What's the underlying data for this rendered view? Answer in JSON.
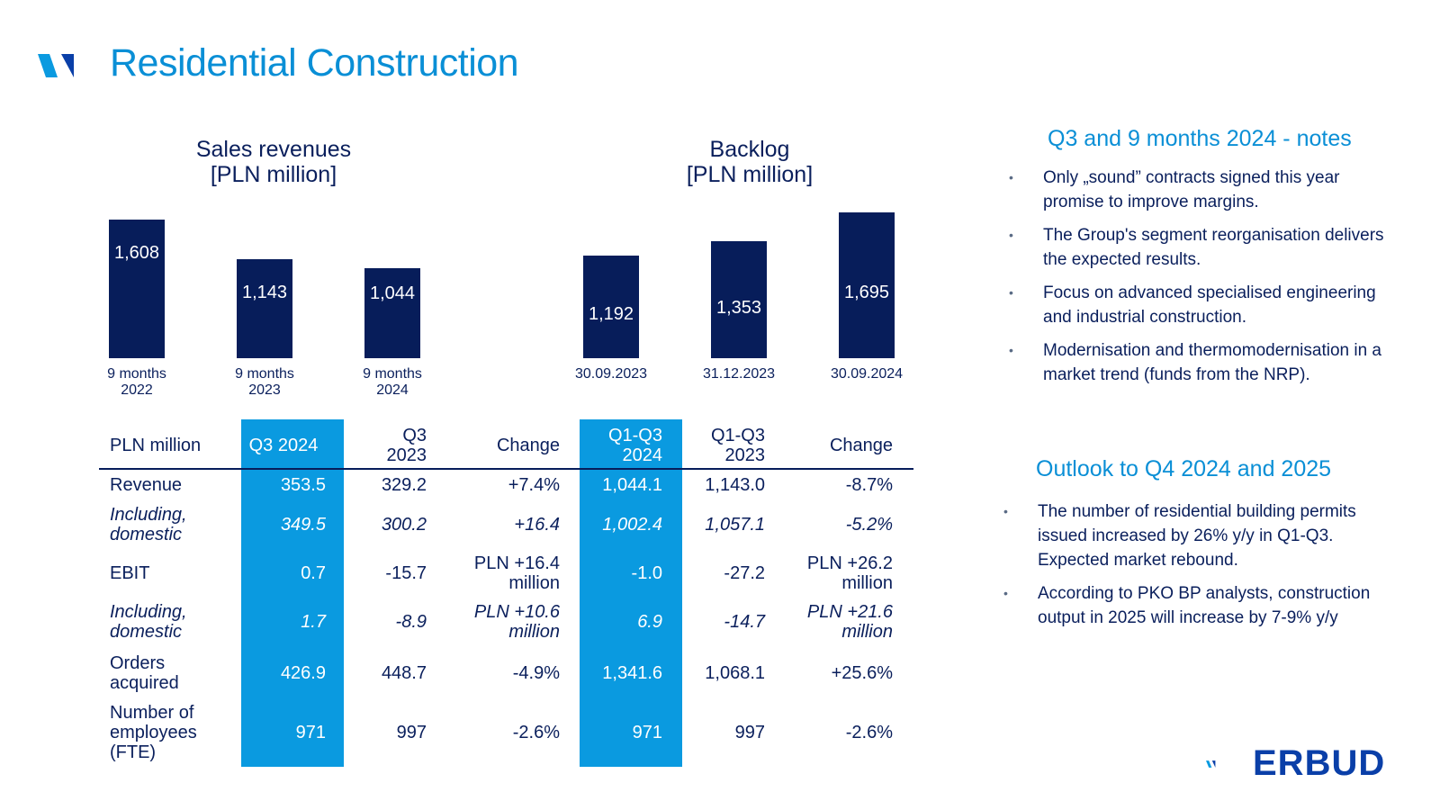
{
  "page": {
    "title": "Residential Construction"
  },
  "sales_chart": {
    "title_line1": "Sales revenues",
    "title_line2": "[PLN million]"
  },
  "backlog_chart": {
    "title_line1": "Backlog",
    "title_line2": "[PLN million]"
  },
  "chart_data": [
    {
      "type": "bar",
      "title": "Sales revenues [PLN million]",
      "categories": [
        "9 months 2022",
        "9 months 2023",
        "9 months 2024"
      ],
      "category_lines": [
        [
          "9 months",
          "2022"
        ],
        [
          "9 months",
          "2023"
        ],
        [
          "9 months",
          "2024"
        ]
      ],
      "values": [
        1608,
        1143,
        1044
      ],
      "labels": [
        "1,608",
        "1,143",
        "1,044"
      ],
      "ylim": [
        0,
        1800
      ]
    },
    {
      "type": "bar",
      "title": "Backlog [PLN million]",
      "categories": [
        "30.09.2023",
        "31.12.2023",
        "30.09.2024"
      ],
      "category_lines": [
        [
          "30.09.2023"
        ],
        [
          "31.12.2023"
        ],
        [
          "30.09.2024"
        ]
      ],
      "values": [
        1192,
        1353,
        1695
      ],
      "labels": [
        "1,192",
        "1,353",
        "1,695"
      ],
      "ylim": [
        0,
        1800
      ]
    }
  ],
  "table": {
    "headers": [
      "PLN million",
      "Q3 2024",
      "Q3\n2023",
      "Change",
      "Q1-Q3\n2024",
      "Q1-Q3\n2023",
      "Change"
    ],
    "rows": [
      {
        "label": "Revenue",
        "italic": false,
        "cells": [
          "353.5",
          "329.2",
          "+7.4%",
          "1,044.1",
          "1,143.0",
          "-8.7%"
        ]
      },
      {
        "label": "Including, domestic",
        "italic": true,
        "cells": [
          "349.5",
          "300.2",
          "+16.4",
          "1,002.4",
          "1,057.1",
          "-5.2%"
        ]
      },
      {
        "label": "EBIT",
        "italic": false,
        "cells": [
          "0.7",
          "-15.7",
          "PLN +16.4 million",
          "-1.0",
          "-27.2",
          "PLN +26.2 million"
        ]
      },
      {
        "label": "Including, domestic",
        "italic": true,
        "cells": [
          "1.7",
          "-8.9",
          "PLN +10.6 million",
          "6.9",
          "-14.7",
          "PLN +21.6 million"
        ]
      },
      {
        "label": "Orders acquired",
        "italic": false,
        "cells": [
          "426.9",
          "448.7",
          "-4.9%",
          "1,341.6",
          "1,068.1",
          "+25.6%"
        ]
      },
      {
        "label": "Number of employees (FTE)",
        "italic": false,
        "cells": [
          "971",
          "997",
          "-2.6%",
          "971",
          "997",
          "-2.6%"
        ]
      }
    ]
  },
  "notes": {
    "title": "Q3 and 9 months 2024 - notes",
    "items": [
      "Only „sound” contracts signed this year promise to improve margins.",
      "The Group's segment reorganisation delivers the expected results.",
      "Focus on advanced specialised engineering and industrial construction.",
      "Modernisation and thermomodernisation in a market trend (funds from the NRP)."
    ]
  },
  "outlook": {
    "title": "Outlook to Q4 2024 and 2025",
    "items": [
      "The number of residential building permits issued increased by 26% y/y in Q1-Q3. Expected market rebound.",
      "According to PKO BP analysts, construction output in 2025 will increase by 7-9% y/y"
    ]
  },
  "brand": {
    "name": "ERBUD"
  },
  "colors": {
    "navy": "#071d5a",
    "accent_blue": "#0a9ae0",
    "title_blue": "#0a8fd6"
  }
}
